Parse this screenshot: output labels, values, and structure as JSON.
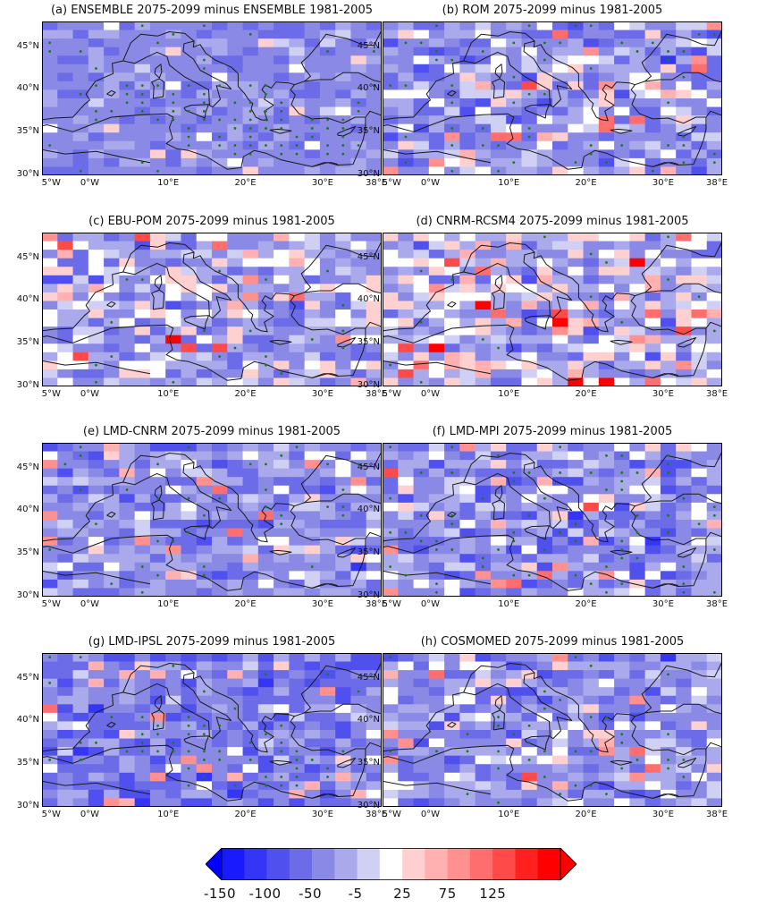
{
  "figure": {
    "panels": [
      {
        "title": "(a) ENSEMBLE 2075-2099 minus ENSEMBLE 1981-2005",
        "bias": -38,
        "spread": 35,
        "seed": 11,
        "dot_rate": 0.45,
        "dot_region": "sea"
      },
      {
        "title": "(b) ROM 2075-2099 minus 1981-2005",
        "bias": -28,
        "spread": 70,
        "seed": 23,
        "dot_rate": 0.18,
        "dot_region": "all"
      },
      {
        "title": "(c) EBU-POM  2075-2099 minus 1981-2005",
        "bias": -15,
        "spread": 75,
        "seed": 37,
        "dot_rate": 0.08,
        "dot_region": "all"
      },
      {
        "title": "(d) CNRM-RCSM4 2075-2099 minus 1981-2005",
        "bias": -10,
        "spread": 75,
        "seed": 41,
        "dot_rate": 0.06,
        "dot_region": "all"
      },
      {
        "title": "(e) LMD-CNRM 2075-2099 minus 1981-2005",
        "bias": -30,
        "spread": 60,
        "seed": 53,
        "dot_rate": 0.12,
        "dot_region": "all"
      },
      {
        "title": "(f) LMD-MPI  2075-2099 minus 1981-2005",
        "bias": -30,
        "spread": 65,
        "seed": 67,
        "dot_rate": 0.2,
        "dot_region": "all"
      },
      {
        "title": "(g) LMD-IPSL 2075-2099 minus 1981-2005",
        "bias": -45,
        "spread": 60,
        "seed": 79,
        "dot_rate": 0.3,
        "dot_region": "sea"
      },
      {
        "title": "(h) COSMOMED 2075-2099 minus 1981-2005",
        "bias": -30,
        "spread": 65,
        "seed": 97,
        "dot_rate": 0.22,
        "dot_region": "sea"
      }
    ],
    "lat_ticks": [
      "30°N",
      "35°N",
      "40°N",
      "45°N"
    ],
    "lon_ticks": [
      "5°W",
      "0°W",
      "10°E",
      "20°E",
      "30°E",
      "38°E"
    ],
    "lon_tick_values": [
      -5,
      0,
      10,
      20,
      30,
      38
    ],
    "lat_tick_values": [
      30,
      35,
      40,
      45
    ],
    "lon_range": [
      -6,
      38
    ],
    "lat_range": [
      30,
      48
    ],
    "colorbar": {
      "ticks": [
        "-150",
        "-100",
        "-50",
        "-5",
        "25",
        "75",
        "125"
      ],
      "boundaries": [
        -150,
        -125,
        -100,
        -75,
        -50,
        -25,
        -5,
        5,
        25,
        50,
        75,
        100,
        125,
        150
      ],
      "colors": [
        "#1a1aff",
        "#3535f5",
        "#5050ee",
        "#6c6ce8",
        "#8a8ae6",
        "#a9a9ec",
        "#d0d0f5",
        "#ffffff",
        "#ffd0d0",
        "#ffb0b0",
        "#ff9090",
        "#ff6e6e",
        "#ff4a4a",
        "#ff2020",
        "#ff0000"
      ],
      "under_color": "#0000ff",
      "over_color": "#ff0000",
      "dot_color": "#1a7a1a",
      "coast_color": "#1a1a1a"
    }
  }
}
